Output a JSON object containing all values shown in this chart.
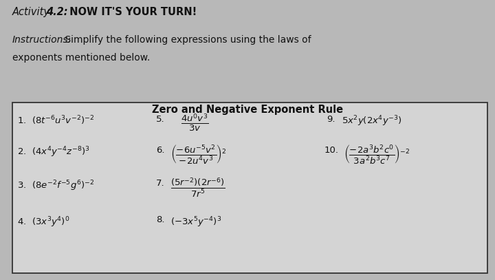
{
  "bg_color": "#b8b8b8",
  "box_bg": "#d4d4d4",
  "box_edge": "#333333",
  "text_color": "#111111",
  "box_header": "Zero and Negative Exponent Rule",
  "title_italic": "Activity ",
  "title_bold_italic": "4.2:",
  "title_bold": " NOW IT'S YOUR TURN!",
  "instr_italic": "Instructions:",
  "instr_normal": " Simplify the following expressions using the laws of",
  "instr_line2": "exponents mentioned below.",
  "col1_items": [
    "1.  $(8t^{-6}u^3v^{-2})^{-2}$",
    "2.  $(4x^4y^{-4}z^{-8})^3$",
    "3.  $(8e^{-2}f^{-5}g^6)^{-2}$",
    "4.  $(3x^3y^4)^0$"
  ],
  "item5": "$\\dfrac{4u^0v^3}{3v}$",
  "item6": "$\\left(\\dfrac{-6u^{-5}v^2}{-2u^4v^3}\\right)^2$",
  "item7": "$\\dfrac{(5r^{-2})(2r^{-6})}{7r^5}$",
  "item8": "$(-3x^5y^{-4})^3$",
  "item9": "$5x^2y(2x^4y^{-3})$",
  "item10": "$\\left(\\dfrac{-2a^3b^2c^0}{3a^2b^3c^7}\\right)^{-2}$",
  "figsize": [
    7.2,
    4.07
  ],
  "dpi": 100
}
